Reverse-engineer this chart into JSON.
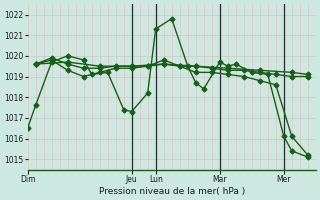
{
  "xlabel": "Pression niveau de la mer( hPa )",
  "background_color": "#cce8e0",
  "grid_color_h": "#b8d0c8",
  "grid_color_v_minor": "#e8b8b8",
  "grid_color_v_major": "#c8a0a0",
  "line_color": "#1a5c1a",
  "ylim": [
    1014.5,
    1022.5
  ],
  "yticks": [
    1015,
    1016,
    1017,
    1018,
    1019,
    1020,
    1021,
    1022
  ],
  "day_labels": [
    "Dim",
    "Jeu",
    "Lun",
    "Mar",
    "Mer"
  ],
  "day_positions": [
    0,
    13,
    16,
    24,
    32
  ],
  "vline_positions": [
    13,
    16,
    24,
    32
  ],
  "xlim": [
    0,
    36
  ],
  "series": [
    {
      "x": [
        0,
        1,
        3,
        5,
        7,
        8,
        10,
        12,
        13,
        15,
        16,
        18,
        20,
        21,
        22,
        24,
        25,
        26,
        28,
        30,
        32,
        33,
        35
      ],
      "y": [
        1016.5,
        1017.6,
        1019.7,
        1020.0,
        1019.8,
        1019.1,
        1019.2,
        1017.4,
        1017.3,
        1018.2,
        1021.3,
        1021.8,
        1019.5,
        1018.7,
        1018.4,
        1019.7,
        1019.5,
        1019.6,
        1019.2,
        1019.1,
        1016.1,
        1015.4,
        1015.1
      ]
    },
    {
      "x": [
        1,
        3,
        5,
        7,
        9,
        11,
        13,
        15,
        17,
        19,
        21,
        23,
        25,
        27,
        29,
        31,
        33,
        35
      ],
      "y": [
        1019.6,
        1019.9,
        1019.6,
        1019.4,
        1019.4,
        1019.5,
        1019.5,
        1019.5,
        1019.6,
        1019.5,
        1019.5,
        1019.4,
        1019.3,
        1019.3,
        1019.2,
        1019.1,
        1019.0,
        1019.0
      ]
    },
    {
      "x": [
        1,
        5,
        9,
        13,
        17,
        21,
        25,
        29,
        33,
        35
      ],
      "y": [
        1019.6,
        1019.7,
        1019.5,
        1019.5,
        1019.6,
        1019.5,
        1019.4,
        1019.3,
        1019.2,
        1019.1
      ]
    },
    {
      "x": [
        1,
        3,
        5,
        7,
        9,
        11,
        13,
        15,
        17,
        19,
        21,
        23,
        25,
        27,
        29,
        31,
        33,
        35
      ],
      "y": [
        1019.6,
        1019.8,
        1019.3,
        1019.0,
        1019.2,
        1019.4,
        1019.4,
        1019.5,
        1019.8,
        1019.5,
        1019.2,
        1019.2,
        1019.1,
        1019.0,
        1018.8,
        1018.6,
        1016.1,
        1015.2
      ]
    }
  ],
  "marker_size": 2.5,
  "line_width": 1.0
}
